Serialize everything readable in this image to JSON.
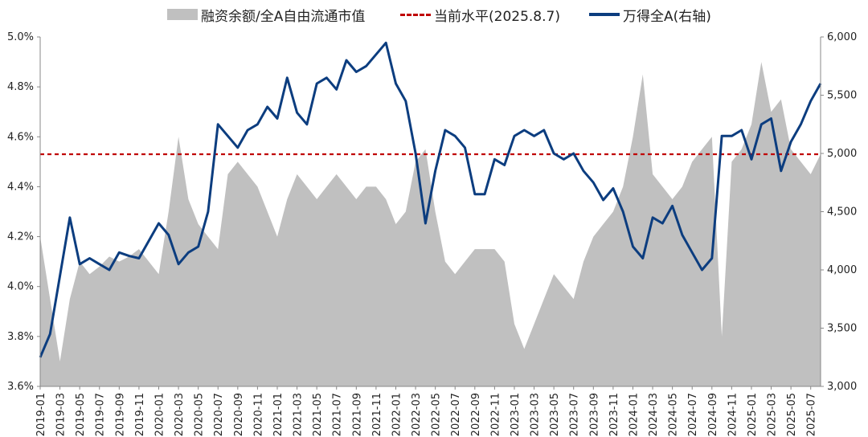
{
  "chart_data": {
    "type": "area",
    "title": "",
    "legend": {
      "placement": "top",
      "items": [
        {
          "key": "area",
          "label": "融资余额/全A自由流通市值"
        },
        {
          "key": "ref",
          "label": "当前水平(2025.8.7)"
        },
        {
          "key": "line",
          "label": "万得全A(右轴)"
        }
      ]
    },
    "x_ticks": [
      "2019-01",
      "2019-03",
      "2019-05",
      "2019-07",
      "2019-09",
      "2019-11",
      "2020-01",
      "2020-03",
      "2020-05",
      "2020-07",
      "2020-09",
      "2020-11",
      "2021-01",
      "2021-03",
      "2021-05",
      "2021-07",
      "2021-09",
      "2021-11",
      "2022-01",
      "2022-03",
      "2022-05",
      "2022-07",
      "2022-09",
      "2022-11",
      "2023-01",
      "2023-03",
      "2023-05",
      "2023-07",
      "2023-09",
      "2023-11",
      "2024-01",
      "2024-03",
      "2024-05",
      "2024-07",
      "2024-09",
      "2024-11",
      "2025-01",
      "2025-03",
      "2025-05",
      "2025-07"
    ],
    "x_range": [
      "2019-01",
      "2025-08"
    ],
    "y_left": {
      "ticks": [
        "3.6%",
        "3.8%",
        "4.0%",
        "4.2%",
        "4.4%",
        "4.6%",
        "4.8%",
        "5.0%"
      ],
      "ylim": [
        3.6,
        5.0
      ]
    },
    "y_right": {
      "ticks": [
        "3,000",
        "3,500",
        "4,000",
        "4,500",
        "5,000",
        "5,500",
        "6,000"
      ],
      "ylim": [
        3000,
        6000
      ]
    },
    "grid": false,
    "reference_line": {
      "name": "当前水平(2025.8.7)",
      "value": 4.53,
      "axis": "left",
      "color": "#c00000"
    },
    "series": [
      {
        "name": "融资余额/全A自由流通市值",
        "type": "area",
        "axis": "left",
        "color": "#c0c0c0",
        "points": [
          [
            "2019-01",
            4.2
          ],
          [
            "2019-02",
            3.95
          ],
          [
            "2019-03",
            3.7
          ],
          [
            "2019-04",
            3.95
          ],
          [
            "2019-05",
            4.1
          ],
          [
            "2019-06",
            4.05
          ],
          [
            "2019-07",
            4.08
          ],
          [
            "2019-08",
            4.12
          ],
          [
            "2019-09",
            4.1
          ],
          [
            "2019-10",
            4.12
          ],
          [
            "2019-11",
            4.15
          ],
          [
            "2019-12",
            4.1
          ],
          [
            "2020-01",
            4.05
          ],
          [
            "2020-02",
            4.3
          ],
          [
            "2020-03",
            4.6
          ],
          [
            "2020-04",
            4.35
          ],
          [
            "2020-05",
            4.25
          ],
          [
            "2020-06",
            4.2
          ],
          [
            "2020-07",
            4.15
          ],
          [
            "2020-08",
            4.45
          ],
          [
            "2020-09",
            4.5
          ],
          [
            "2020-10",
            4.45
          ],
          [
            "2020-11",
            4.4
          ],
          [
            "2020-12",
            4.3
          ],
          [
            "2021-01",
            4.2
          ],
          [
            "2021-02",
            4.35
          ],
          [
            "2021-03",
            4.45
          ],
          [
            "2021-04",
            4.4
          ],
          [
            "2021-05",
            4.35
          ],
          [
            "2021-06",
            4.4
          ],
          [
            "2021-07",
            4.45
          ],
          [
            "2021-08",
            4.4
          ],
          [
            "2021-09",
            4.35
          ],
          [
            "2021-10",
            4.4
          ],
          [
            "2021-11",
            4.4
          ],
          [
            "2021-12",
            4.35
          ],
          [
            "2022-01",
            4.25
          ],
          [
            "2022-02",
            4.3
          ],
          [
            "2022-03",
            4.5
          ],
          [
            "2022-04",
            4.55
          ],
          [
            "2022-05",
            4.3
          ],
          [
            "2022-06",
            4.1
          ],
          [
            "2022-07",
            4.05
          ],
          [
            "2022-08",
            4.1
          ],
          [
            "2022-09",
            4.15
          ],
          [
            "2022-10",
            4.15
          ],
          [
            "2022-11",
            4.15
          ],
          [
            "2022-12",
            4.1
          ],
          [
            "2023-01",
            3.85
          ],
          [
            "2023-02",
            3.75
          ],
          [
            "2023-03",
            3.85
          ],
          [
            "2023-04",
            3.95
          ],
          [
            "2023-05",
            4.05
          ],
          [
            "2023-06",
            4.0
          ],
          [
            "2023-07",
            3.95
          ],
          [
            "2023-08",
            4.1
          ],
          [
            "2023-09",
            4.2
          ],
          [
            "2023-10",
            4.25
          ],
          [
            "2023-11",
            4.3
          ],
          [
            "2023-12",
            4.4
          ],
          [
            "2024-01",
            4.6
          ],
          [
            "2024-02",
            4.85
          ],
          [
            "2024-03",
            4.45
          ],
          [
            "2024-04",
            4.4
          ],
          [
            "2024-05",
            4.35
          ],
          [
            "2024-06",
            4.4
          ],
          [
            "2024-07",
            4.5
          ],
          [
            "2024-08",
            4.55
          ],
          [
            "2024-09",
            4.6
          ],
          [
            "2024-10",
            3.8
          ],
          [
            "2024-11",
            4.5
          ],
          [
            "2024-12",
            4.55
          ],
          [
            "2025-01",
            4.65
          ],
          [
            "2025-02",
            4.9
          ],
          [
            "2025-03",
            4.7
          ],
          [
            "2025-04",
            4.75
          ],
          [
            "2025-05",
            4.55
          ],
          [
            "2025-06",
            4.5
          ],
          [
            "2025-07",
            4.45
          ],
          [
            "2025-08",
            4.53
          ]
        ]
      },
      {
        "name": "万得全A(右轴)",
        "type": "line",
        "axis": "right",
        "color": "#0c3d7f",
        "points": [
          [
            "2019-01",
            3250
          ],
          [
            "2019-02",
            3450
          ],
          [
            "2019-03",
            3950
          ],
          [
            "2019-04",
            4450
          ],
          [
            "2019-05",
            4050
          ],
          [
            "2019-06",
            4100
          ],
          [
            "2019-07",
            4050
          ],
          [
            "2019-08",
            4000
          ],
          [
            "2019-09",
            4150
          ],
          [
            "2019-10",
            4120
          ],
          [
            "2019-11",
            4100
          ],
          [
            "2019-12",
            4250
          ],
          [
            "2020-01",
            4400
          ],
          [
            "2020-02",
            4300
          ],
          [
            "2020-03",
            4050
          ],
          [
            "2020-04",
            4150
          ],
          [
            "2020-05",
            4200
          ],
          [
            "2020-06",
            4500
          ],
          [
            "2020-07",
            5250
          ],
          [
            "2020-08",
            5150
          ],
          [
            "2020-09",
            5050
          ],
          [
            "2020-10",
            5200
          ],
          [
            "2020-11",
            5250
          ],
          [
            "2020-12",
            5400
          ],
          [
            "2021-01",
            5300
          ],
          [
            "2021-02",
            5650
          ],
          [
            "2021-03",
            5350
          ],
          [
            "2021-04",
            5250
          ],
          [
            "2021-05",
            5600
          ],
          [
            "2021-06",
            5650
          ],
          [
            "2021-07",
            5550
          ],
          [
            "2021-08",
            5800
          ],
          [
            "2021-09",
            5700
          ],
          [
            "2021-10",
            5750
          ],
          [
            "2021-11",
            5850
          ],
          [
            "2021-12",
            5950
          ],
          [
            "2022-01",
            5600
          ],
          [
            "2022-02",
            5450
          ],
          [
            "2022-03",
            5000
          ],
          [
            "2022-04",
            4400
          ],
          [
            "2022-05",
            4850
          ],
          [
            "2022-06",
            5200
          ],
          [
            "2022-07",
            5150
          ],
          [
            "2022-08",
            5050
          ],
          [
            "2022-09",
            4650
          ],
          [
            "2022-10",
            4650
          ],
          [
            "2022-11",
            4950
          ],
          [
            "2022-12",
            4900
          ],
          [
            "2023-01",
            5150
          ],
          [
            "2023-02",
            5200
          ],
          [
            "2023-03",
            5150
          ],
          [
            "2023-04",
            5200
          ],
          [
            "2023-05",
            5000
          ],
          [
            "2023-06",
            4950
          ],
          [
            "2023-07",
            5000
          ],
          [
            "2023-08",
            4850
          ],
          [
            "2023-09",
            4750
          ],
          [
            "2023-10",
            4600
          ],
          [
            "2023-11",
            4700
          ],
          [
            "2023-12",
            4500
          ],
          [
            "2024-01",
            4200
          ],
          [
            "2024-02",
            4100
          ],
          [
            "2024-03",
            4450
          ],
          [
            "2024-04",
            4400
          ],
          [
            "2024-05",
            4550
          ],
          [
            "2024-06",
            4300
          ],
          [
            "2024-07",
            4150
          ],
          [
            "2024-08",
            4000
          ],
          [
            "2024-09",
            4100
          ],
          [
            "2024-10",
            5150
          ],
          [
            "2024-11",
            5150
          ],
          [
            "2024-12",
            5200
          ],
          [
            "2025-01",
            4950
          ],
          [
            "2025-02",
            5250
          ],
          [
            "2025-03",
            5300
          ],
          [
            "2025-04",
            4850
          ],
          [
            "2025-05",
            5100
          ],
          [
            "2025-06",
            5250
          ],
          [
            "2025-07",
            5450
          ],
          [
            "2025-08",
            5600
          ]
        ]
      }
    ]
  }
}
